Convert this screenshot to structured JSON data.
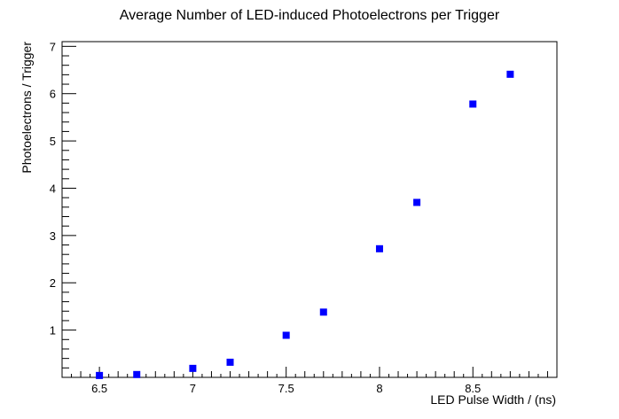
{
  "chart_data": {
    "type": "scatter",
    "title": "Average Number of LED-induced Photoelectrons per Trigger",
    "xlabel": "LED Pulse Width / (ns)",
    "ylabel": "Photoelectrons / Trigger",
    "xlim": [
      6.3,
      8.95
    ],
    "ylim": [
      0.0,
      7.1
    ],
    "x_ticks": [
      "6.5",
      "7",
      "7.5",
      "8",
      "8.5"
    ],
    "y_ticks": [
      "1",
      "2",
      "3",
      "4",
      "5",
      "6",
      "7"
    ],
    "marker_color": "#0000ff",
    "grid": false,
    "points": [
      {
        "x": 6.5,
        "y": 0.04
      },
      {
        "x": 6.7,
        "y": 0.06
      },
      {
        "x": 7.0,
        "y": 0.19
      },
      {
        "x": 7.2,
        "y": 0.32
      },
      {
        "x": 7.5,
        "y": 0.89
      },
      {
        "x": 7.7,
        "y": 1.38
      },
      {
        "x": 8.0,
        "y": 2.72
      },
      {
        "x": 8.2,
        "y": 3.7
      },
      {
        "x": 8.5,
        "y": 5.78
      },
      {
        "x": 8.7,
        "y": 6.41
      }
    ]
  }
}
